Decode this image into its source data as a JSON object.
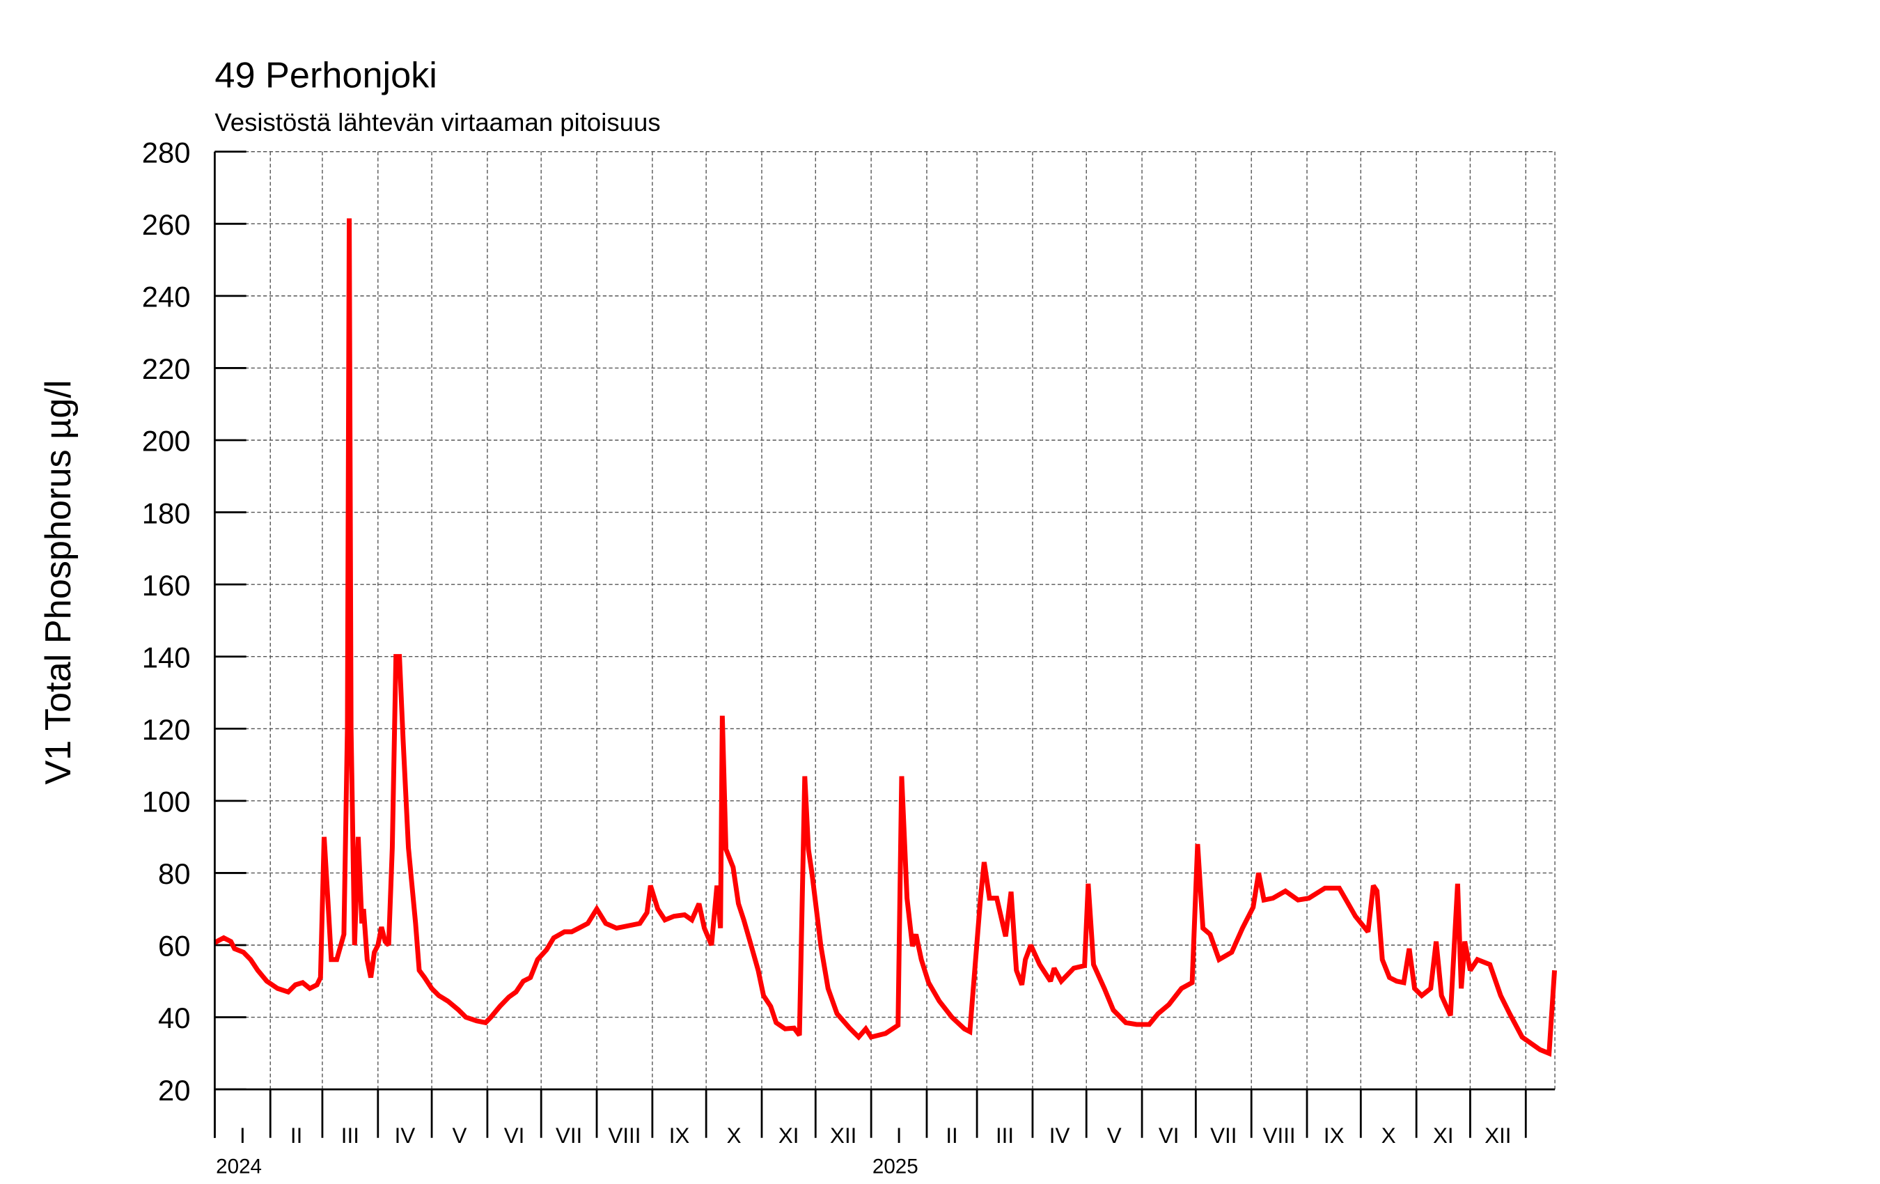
{
  "chart_data": {
    "type": "line",
    "title": "49 Perhonjoki",
    "subtitle": "Vesistöstä lähtevän virtaaman pitoisuus",
    "ylabel": "V1 Total Phosphorus µg/l",
    "xlabel": "",
    "ylim": [
      20,
      280
    ],
    "yticks": [
      20,
      40,
      60,
      80,
      100,
      120,
      140,
      160,
      180,
      200,
      220,
      240,
      260,
      280
    ],
    "x_unit": "days since 2024-01-01",
    "xlim": [
      0,
      747
    ],
    "grid": true,
    "years": [
      {
        "label": "2024",
        "start_day": 0
      },
      {
        "label": "2025",
        "start_day": 366
      }
    ],
    "month_labels": [
      "I",
      "II",
      "III",
      "IV",
      "V",
      "VI",
      "VII",
      "VIII",
      "IX",
      "X",
      "XI",
      "XII"
    ],
    "line_color": "#ff0000",
    "series": [
      {
        "name": "V1 Total Phosphorus",
        "points": [
          [
            0,
            60.7
          ],
          [
            5,
            62
          ],
          [
            9,
            61
          ],
          [
            11,
            59
          ],
          [
            16,
            58
          ],
          [
            20,
            56
          ],
          [
            24,
            53
          ],
          [
            29,
            50
          ],
          [
            35,
            48
          ],
          [
            41,
            47
          ],
          [
            45,
            49
          ],
          [
            49,
            49.6
          ],
          [
            53,
            48
          ],
          [
            57,
            49
          ],
          [
            59,
            51
          ],
          [
            61,
            90
          ],
          [
            63,
            73
          ],
          [
            65,
            56
          ],
          [
            68,
            56
          ],
          [
            72,
            63
          ],
          [
            74,
            120
          ],
          [
            75,
            261.5
          ],
          [
            76,
            120
          ],
          [
            78,
            60
          ],
          [
            80,
            90
          ],
          [
            82,
            66
          ],
          [
            83,
            70
          ],
          [
            85,
            56
          ],
          [
            87,
            51
          ],
          [
            89,
            58
          ],
          [
            91,
            60
          ],
          [
            93,
            65
          ],
          [
            95,
            61
          ],
          [
            97,
            60
          ],
          [
            99,
            87
          ],
          [
            101,
            140
          ],
          [
            103,
            140
          ],
          [
            105,
            117
          ],
          [
            108,
            87
          ],
          [
            112,
            66
          ],
          [
            114,
            53
          ],
          [
            117,
            51
          ],
          [
            121,
            48
          ],
          [
            125,
            46
          ],
          [
            130,
            44.5
          ],
          [
            136,
            42
          ],
          [
            140,
            40
          ],
          [
            146,
            39
          ],
          [
            151,
            38.5
          ],
          [
            154,
            40
          ],
          [
            159,
            43
          ],
          [
            164,
            45.6
          ],
          [
            168,
            47
          ],
          [
            172,
            50
          ],
          [
            176,
            51
          ],
          [
            180,
            56
          ],
          [
            185,
            58.7
          ],
          [
            189,
            62
          ],
          [
            195,
            63.7
          ],
          [
            199,
            63.7
          ],
          [
            203,
            64.7
          ],
          [
            208,
            66
          ],
          [
            213,
            70
          ],
          [
            218,
            66
          ],
          [
            224,
            64.7
          ],
          [
            231,
            65.4
          ],
          [
            237,
            66
          ],
          [
            241,
            69
          ],
          [
            243,
            76.5
          ],
          [
            247,
            70
          ],
          [
            251,
            67
          ],
          [
            256,
            68
          ],
          [
            262,
            68.4
          ],
          [
            266,
            67
          ],
          [
            270,
            71.5
          ],
          [
            273,
            64.7
          ],
          [
            277,
            60
          ],
          [
            280,
            76.5
          ],
          [
            282,
            64.7
          ],
          [
            283,
            123.6
          ],
          [
            285,
            86.6
          ],
          [
            289,
            81.6
          ],
          [
            292,
            71.5
          ],
          [
            295,
            67
          ],
          [
            299,
            60
          ],
          [
            303,
            53
          ],
          [
            306,
            46
          ],
          [
            310,
            43
          ],
          [
            313,
            38.5
          ],
          [
            318,
            36.8
          ],
          [
            323,
            37
          ],
          [
            326,
            35
          ],
          [
            329,
            106.8
          ],
          [
            331,
            86.6
          ],
          [
            333,
            80
          ],
          [
            338,
            59.7
          ],
          [
            342,
            48
          ],
          [
            347,
            41
          ],
          [
            354,
            37
          ],
          [
            359,
            34.5
          ],
          [
            363,
            36.8
          ],
          [
            366,
            34.5
          ],
          [
            374,
            35.5
          ],
          [
            381,
            37.8
          ],
          [
            383,
            106.8
          ],
          [
            386,
            73
          ],
          [
            389,
            59.7
          ],
          [
            391,
            63
          ],
          [
            394,
            56
          ],
          [
            398,
            49.6
          ],
          [
            404,
            44.5
          ],
          [
            411,
            40
          ],
          [
            418,
            36.8
          ],
          [
            421,
            36
          ],
          [
            427,
            73
          ],
          [
            429,
            83
          ],
          [
            432,
            73
          ],
          [
            436,
            73
          ],
          [
            441,
            62.4
          ],
          [
            444,
            74.8
          ],
          [
            447,
            53
          ],
          [
            450,
            49
          ],
          [
            452,
            56
          ],
          [
            455,
            60
          ],
          [
            460,
            54.6
          ],
          [
            466,
            50
          ],
          [
            468,
            53.6
          ],
          [
            472,
            50
          ],
          [
            479,
            53.6
          ],
          [
            485,
            54.3
          ],
          [
            487,
            77
          ],
          [
            490,
            54.6
          ],
          [
            496,
            48
          ],
          [
            501,
            42
          ],
          [
            508,
            38.5
          ],
          [
            514,
            38
          ],
          [
            521,
            38
          ],
          [
            526,
            41
          ],
          [
            532,
            43.5
          ],
          [
            539,
            48
          ],
          [
            545,
            49.6
          ],
          [
            548,
            88
          ],
          [
            551,
            64.7
          ],
          [
            555,
            63
          ],
          [
            560,
            56
          ],
          [
            567,
            58
          ],
          [
            573,
            64.7
          ],
          [
            579,
            70.5
          ],
          [
            582,
            80
          ],
          [
            585,
            72.5
          ],
          [
            590,
            73
          ],
          [
            597,
            75
          ],
          [
            604,
            72.5
          ],
          [
            610,
            73
          ],
          [
            619,
            75.8
          ],
          [
            627,
            75.8
          ],
          [
            632,
            71.5
          ],
          [
            636,
            68
          ],
          [
            643,
            63.7
          ],
          [
            646,
            76.5
          ],
          [
            648,
            75
          ],
          [
            651,
            56
          ],
          [
            655,
            51
          ],
          [
            659,
            50
          ],
          [
            663,
            49.6
          ],
          [
            666,
            59
          ],
          [
            669,
            48
          ],
          [
            673,
            46
          ],
          [
            678,
            48
          ],
          [
            681,
            61
          ],
          [
            684,
            46
          ],
          [
            689,
            40.5
          ],
          [
            693,
            77
          ],
          [
            695,
            48
          ],
          [
            697,
            61
          ],
          [
            700,
            53
          ],
          [
            704,
            56
          ],
          [
            711,
            54.6
          ],
          [
            717,
            46
          ],
          [
            722,
            41
          ],
          [
            729,
            34.5
          ],
          [
            739,
            31
          ],
          [
            744,
            30
          ],
          [
            747,
            53
          ]
        ]
      }
    ]
  }
}
